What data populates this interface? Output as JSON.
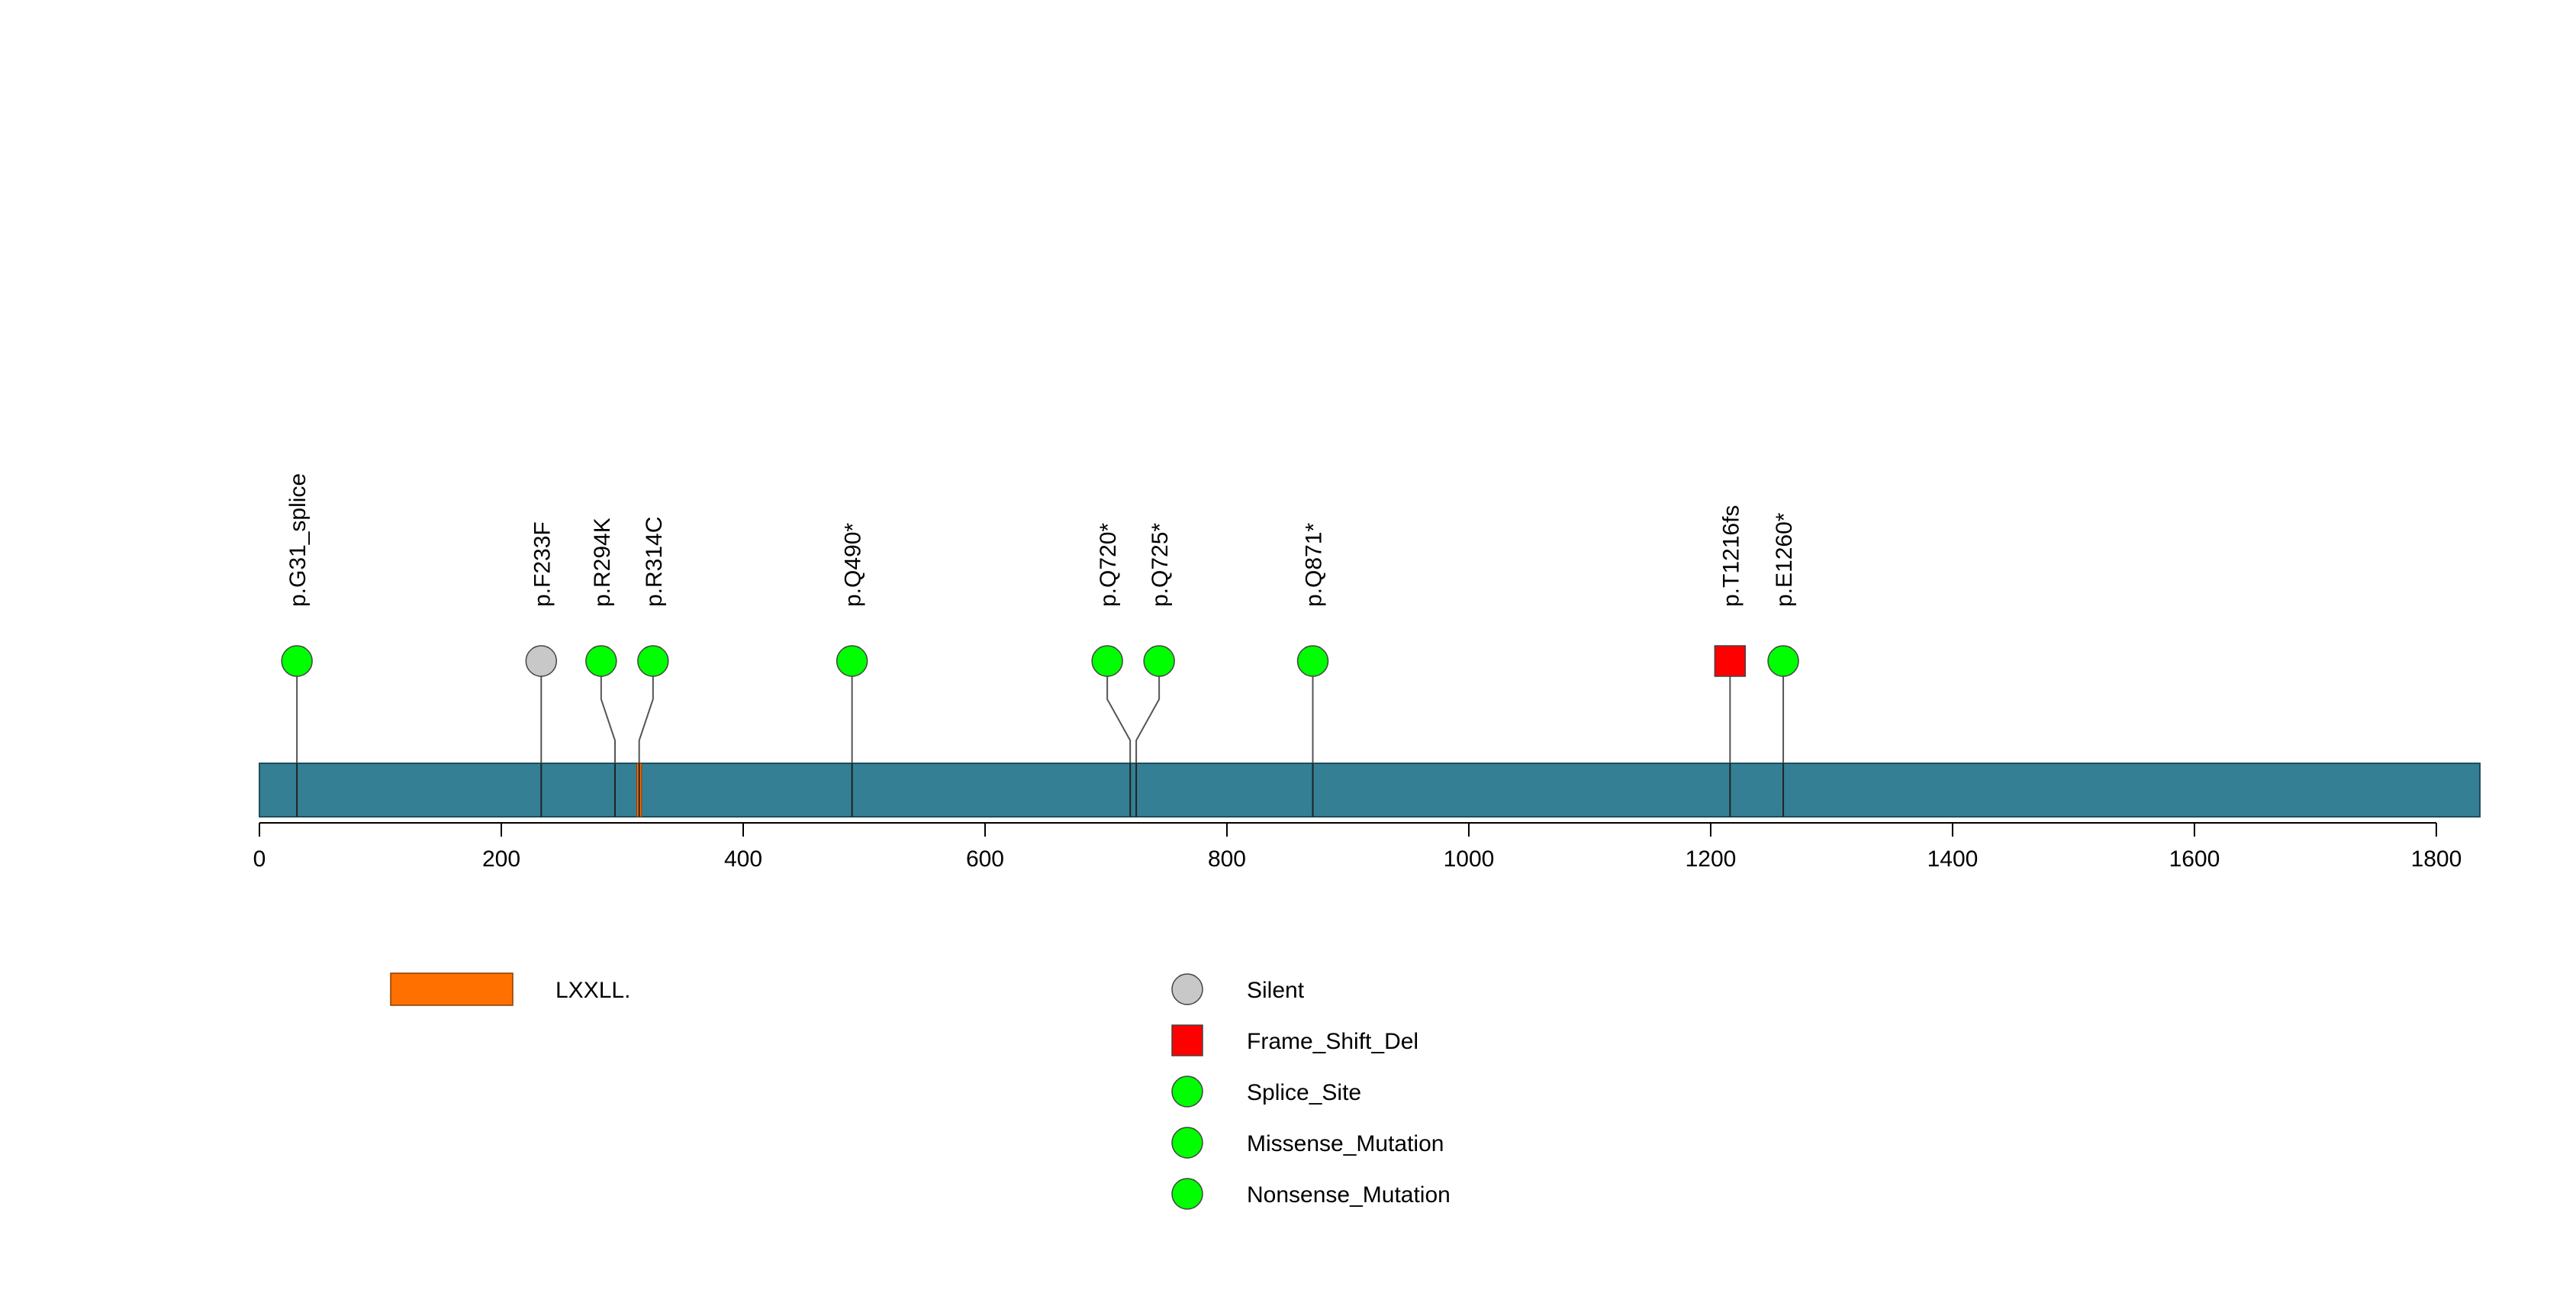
{
  "chart_data": {
    "type": "lollipop",
    "x_axis": {
      "range": [
        0,
        1836
      ],
      "ticks": [
        0,
        200,
        400,
        600,
        800,
        1000,
        1200,
        1400,
        1600,
        1800
      ],
      "tick_labels": [
        "0",
        "200",
        "400",
        "600",
        "800",
        "1000",
        "1200",
        "1400",
        "1600",
        "1800"
      ]
    },
    "protein": {
      "length": 1836,
      "color": "#347f94"
    },
    "domains": [
      {
        "name": "LXXLL.",
        "start": 312,
        "end": 316,
        "color": "#ff7000"
      }
    ],
    "mutations": [
      {
        "label": "p.G31_splice",
        "position": 31,
        "type": "Splice_Site"
      },
      {
        "label": "p.F233F",
        "position": 233,
        "type": "Silent"
      },
      {
        "label": "p.R294K",
        "position": 294,
        "type": "Missense_Mutation"
      },
      {
        "label": "p.R314C",
        "position": 314,
        "type": "Missense_Mutation"
      },
      {
        "label": "p.Q490*",
        "position": 490,
        "type": "Nonsense_Mutation"
      },
      {
        "label": "p.Q720*",
        "position": 720,
        "type": "Nonsense_Mutation"
      },
      {
        "label": "p.Q725*",
        "position": 725,
        "type": "Nonsense_Mutation"
      },
      {
        "label": "p.Q871*",
        "position": 871,
        "type": "Nonsense_Mutation"
      },
      {
        "label": "p.T1216fs",
        "position": 1216,
        "type": "Frame_Shift_Del"
      },
      {
        "label": "p.E1260*",
        "position": 1260,
        "type": "Nonsense_Mutation"
      }
    ],
    "legend": {
      "domains": [
        {
          "label": "LXXLL.",
          "color": "#ff7000"
        }
      ],
      "mutation_types": [
        {
          "label": "Silent",
          "shape": "circle",
          "color": "#c8c8c8"
        },
        {
          "label": "Frame_Shift_Del",
          "shape": "square",
          "color": "#ff0000"
        },
        {
          "label": "Splice_Site",
          "shape": "circle",
          "color": "#00ff00"
        },
        {
          "label": "Missense_Mutation",
          "shape": "circle",
          "color": "#00ff00"
        },
        {
          "label": "Nonsense_Mutation",
          "shape": "circle",
          "color": "#00ff00"
        }
      ]
    }
  }
}
